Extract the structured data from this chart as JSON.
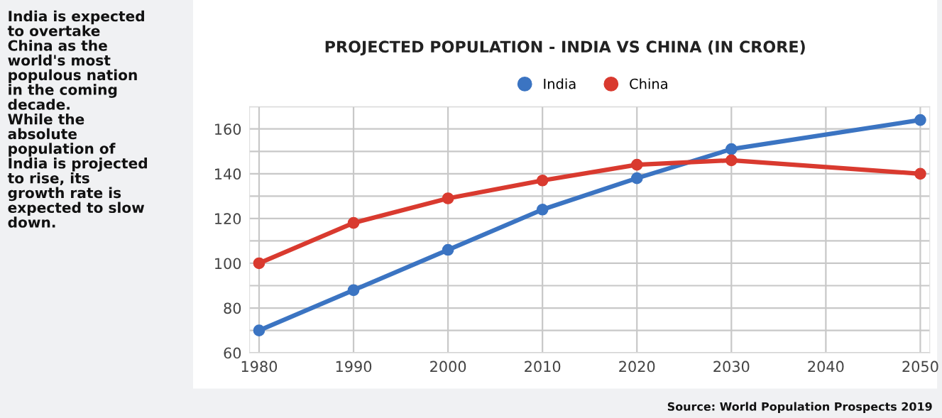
{
  "chart_data": {
    "type": "line",
    "title": "PROJECTED POPULATION - INDIA VS CHINA (IN CRORE)",
    "x": [
      1980,
      1990,
      2000,
      2010,
      2020,
      2030,
      2050
    ],
    "series": [
      {
        "name": "India",
        "color": "#3b74c2",
        "values": [
          70,
          88,
          106,
          124,
          138,
          151,
          164
        ]
      },
      {
        "name": "China",
        "color": "#d93a2f",
        "values": [
          100,
          118,
          129,
          137,
          144,
          146,
          140
        ]
      }
    ],
    "xlim": [
      1979,
      2051
    ],
    "xticks": [
      1980,
      1990,
      2000,
      2010,
      2020,
      2030,
      2040,
      2050
    ],
    "ylim": [
      60,
      170
    ],
    "yticks": [
      60,
      {
        "value": 70,
        "label": null
      },
      80,
      {
        "value": 90,
        "label": null
      },
      100,
      {
        "value": 110,
        "label": null
      },
      120,
      {
        "value": 130,
        "label": null
      },
      140,
      {
        "value": 150,
        "label": null
      },
      160,
      {
        "value": 170,
        "label": null
      }
    ],
    "grid": true,
    "legend": "top",
    "marker": "circle",
    "line_style": "solid",
    "annotations": [
      "India is expected\nto overtake\nChina as the\nworld's most\npopulous nation\nin the coming\ndecade.\nWhile the\nabsolute\npopulation of\nIndia is projected\nto rise, its\ngrowth rate is\nexpected to slow\ndown.",
      "Source: World Population Prospects 2019"
    ]
  }
}
